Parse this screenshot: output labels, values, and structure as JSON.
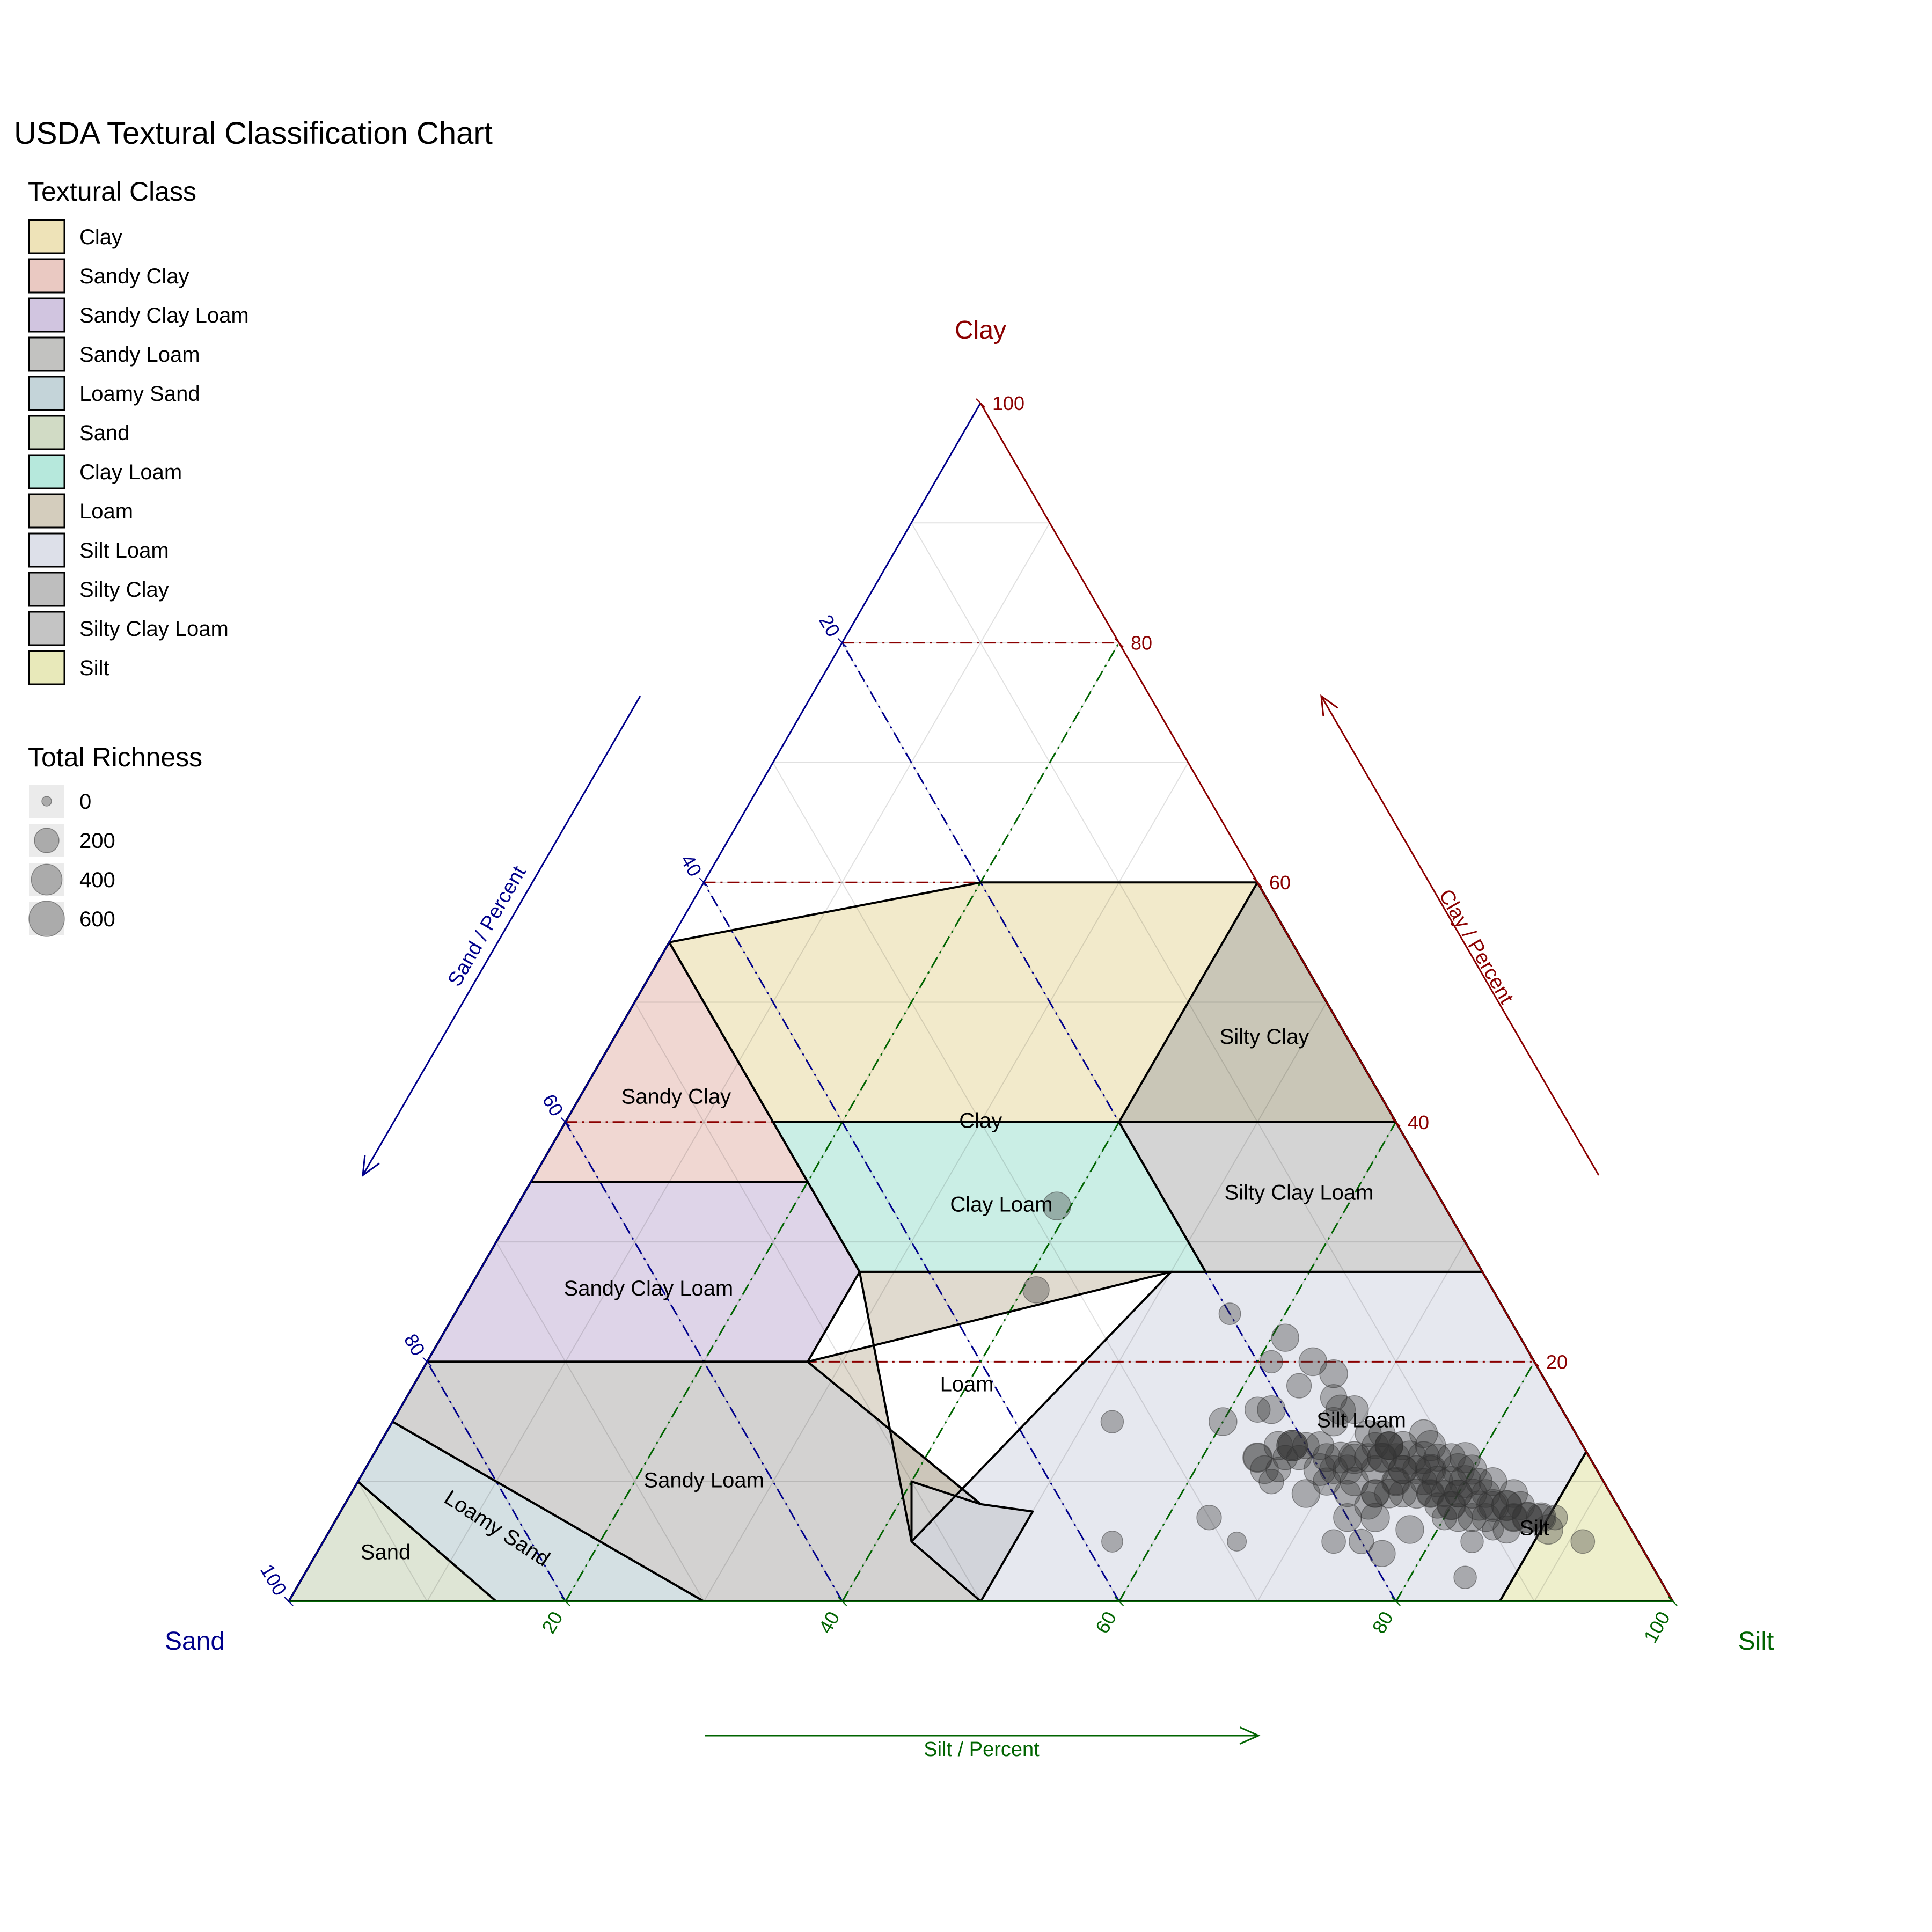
{
  "title": "USDA Textural Classification Chart",
  "legend": {
    "class_title": "Textural Class",
    "richness_title": "Total Richness"
  },
  "vertices": {
    "top": "Clay",
    "left": "Sand",
    "right": "Silt"
  },
  "axis_titles": {
    "sand": "Sand / Percent",
    "clay": "Clay / Percent",
    "silt": "Silt / Percent"
  },
  "colors": {
    "sand_axis": "#00008b",
    "clay_axis": "#8b0000",
    "silt_axis": "#006400",
    "point_fill": "#333333"
  },
  "chart_data": {
    "type": "scatter",
    "ternary": true,
    "axes": [
      "Sand",
      "Silt",
      "Clay"
    ],
    "range": [
      0,
      100
    ],
    "ticks": [
      20,
      40,
      60,
      80,
      100
    ],
    "grid": true,
    "reference_lines": {
      "clay": [
        20,
        40,
        60,
        80
      ],
      "sand": [
        20,
        40,
        60,
        80
      ],
      "silt": [
        20,
        40,
        60,
        80
      ]
    },
    "classes": [
      {
        "name": "Clay",
        "color": "#e8d9a0",
        "label_pos": [
          30,
          30,
          40
        ],
        "polygon": [
          [
            45,
            0,
            55
          ],
          [
            20,
            20,
            60
          ],
          [
            0,
            40,
            60
          ],
          [
            0,
            60,
            40
          ],
          [
            20,
            40,
            40
          ],
          [
            45,
            15,
            40
          ]
        ]
      },
      {
        "name": "Sandy Clay",
        "color": "#e3b7ad",
        "label_pos": [
          51,
          7,
          42
        ],
        "polygon": [
          [
            65,
            0,
            35
          ],
          [
            45,
            0,
            55
          ],
          [
            45,
            20,
            35
          ]
        ]
      },
      {
        "name": "Sandy Clay Loam",
        "color": "#c2b1d6",
        "label_pos": [
          61,
          13,
          26
        ],
        "polygon": [
          [
            80,
            0,
            20
          ],
          [
            65,
            0,
            35
          ],
          [
            45,
            20,
            35
          ],
          [
            45,
            27.5,
            27.5
          ],
          [
            52.5,
            27.5,
            20
          ]
        ]
      },
      {
        "name": "Sandy Loam",
        "color": "#aeadab",
        "label_pos": [
          65,
          25,
          10
        ],
        "polygon": [
          [
            85,
            0,
            15
          ],
          [
            80,
            0,
            20
          ],
          [
            52.5,
            27.5,
            20
          ],
          [
            42.5,
            42.5,
            7.5
          ],
          [
            42.5,
            50,
            7.5
          ],
          [
            50,
            50,
            0
          ],
          [
            70,
            30,
            0
          ]
        ]
      },
      {
        "name": "Loamy Sand",
        "color": "#b0c6cc",
        "label_pos": [
          82,
          12,
          6
        ],
        "polygon": [
          [
            90,
            0,
            10
          ],
          [
            85,
            0,
            15
          ],
          [
            70,
            30,
            0
          ],
          [
            85,
            15,
            0
          ]
        ]
      },
      {
        "name": "Sand",
        "color": "#c2cfb2",
        "label_pos": [
          91,
          5,
          4
        ],
        "polygon": [
          [
            100,
            0,
            0
          ],
          [
            90,
            0,
            10
          ],
          [
            85,
            15,
            0
          ]
        ]
      },
      {
        "name": "Clay Loam",
        "color": "#9ee0d0",
        "label_pos": [
          32,
          35,
          33
        ],
        "polygon": [
          [
            45,
            15,
            40
          ],
          [
            20,
            40,
            40
          ],
          [
            20,
            52.5,
            27.5
          ],
          [
            45,
            27.5,
            27.5
          ]
        ]
      },
      {
        "name": "Loam",
        "color": "#c6bca7",
        "label_pos": [
          42,
          40,
          18
        ],
        "polygon": [
          [
            45,
            27.5,
            27.5
          ],
          [
            22.5,
            50,
            27.5
          ],
          [
            52.5,
            27.5,
            20
          ],
          [
            42.5,
            42.5,
            7.5
          ],
          [
            50,
            40,
            10
          ],
          [
            52.5,
            42.5,
            5
          ]
        ]
      },
      {
        "name": "Silt Loam",
        "color": "#d2d5e1",
        "label_pos": [
          15,
          70,
          15
        ],
        "polygon": [
          [
            50,
            50,
            0
          ],
          [
            20,
            80,
            0
          ],
          [
            12.5,
            87.5,
            0
          ],
          [
            0,
            87.5,
            12.5
          ],
          [
            0,
            72.5,
            27.5
          ],
          [
            22.5,
            50,
            27.5
          ],
          [
            52.5,
            42.5,
            5
          ]
        ]
      },
      {
        "name": "Silty Clay",
        "color": "#a8a8a8",
        "label_pos": [
          6,
          47,
          47
        ],
        "polygon": [
          [
            20,
            40,
            40
          ],
          [
            0,
            60,
            40
          ],
          [
            0,
            40,
            60
          ]
        ]
      },
      {
        "name": "Silty Clay Loam",
        "color": "#b0b0b0",
        "label_pos": [
          10,
          56,
          34
        ],
        "polygon": [
          [
            20,
            40,
            40
          ],
          [
            0,
            60,
            40
          ],
          [
            0,
            72.5,
            27.5
          ],
          [
            20,
            52.5,
            27.5
          ]
        ]
      },
      {
        "name": "Silt",
        "color": "#e0e2a3",
        "label_pos": [
          7,
          87,
          6
        ],
        "polygon": [
          [
            20,
            80,
            0
          ],
          [
            0,
            100,
            0
          ],
          [
            0,
            87.5,
            12.5
          ],
          [
            12.5,
            87.5,
            0
          ]
        ]
      }
    ],
    "size_legend": [
      {
        "label": "0",
        "value": 0
      },
      {
        "label": "200",
        "value": 200
      },
      {
        "label": "400",
        "value": 400
      },
      {
        "label": "600",
        "value": 600
      }
    ],
    "series": [
      {
        "points": [
          [
            28,
            39,
            33,
            300
          ],
          [
            33,
            41,
            26,
            250
          ],
          [
            33,
            52,
            15,
            150
          ],
          [
            29,
            66,
            5,
            80
          ],
          [
            25,
            60,
            15,
            300
          ],
          [
            16,
            67,
            17,
            250
          ],
          [
            18,
            64,
            18,
            200
          ],
          [
            15,
            66,
            19,
            300
          ],
          [
            16,
            64,
            20,
            300
          ],
          [
            19,
            61,
            20,
            150
          ],
          [
            17,
            61,
            22,
            280
          ],
          [
            20,
            56,
            24,
            130
          ],
          [
            22,
            62,
            16,
            220
          ],
          [
            30,
            63,
            7,
            200
          ],
          [
            38,
            57,
            5,
            120
          ],
          [
            21,
            63,
            16,
            300
          ],
          [
            15,
            73,
            12,
            350
          ],
          [
            18,
            75,
            7,
            320
          ],
          [
            24,
            64,
            12,
            300
          ],
          [
            17,
            71,
            12,
            450
          ],
          [
            21,
            66,
            13,
            400
          ],
          [
            14,
            73,
            13,
            300
          ],
          [
            15,
            71,
            14,
            250
          ],
          [
            14,
            74,
            12,
            300
          ],
          [
            13,
            75,
            12,
            500
          ],
          [
            12,
            77,
            11,
            400
          ],
          [
            13,
            79,
            8,
            220
          ],
          [
            13,
            78,
            9,
            300
          ],
          [
            10,
            80,
            10,
            450
          ],
          [
            11,
            79,
            10,
            380
          ],
          [
            10,
            78,
            12,
            300
          ],
          [
            12,
            80,
            8,
            320
          ],
          [
            9,
            81,
            10,
            250
          ],
          [
            15,
            72,
            13,
            250
          ],
          [
            14,
            75,
            11,
            300
          ],
          [
            8,
            82,
            10,
            300
          ],
          [
            18,
            71,
            11,
            350
          ],
          [
            20,
            69,
            11,
            450
          ],
          [
            17,
            74,
            9,
            280
          ],
          [
            16,
            72,
            12,
            300
          ],
          [
            12,
            78,
            10,
            400
          ],
          [
            11,
            82,
            7,
            300
          ],
          [
            12,
            79,
            9,
            250
          ],
          [
            9,
            79,
            12,
            380
          ],
          [
            10,
            79,
            11,
            450
          ],
          [
            13,
            76,
            11,
            300
          ],
          [
            14,
            77,
            9,
            350
          ],
          [
            11,
            80,
            9,
            280
          ],
          [
            15,
            73,
            12,
            300
          ],
          [
            7,
            84,
            9,
            300
          ],
          [
            8,
            84,
            8,
            380
          ],
          [
            7,
            86,
            7,
            400
          ],
          [
            9,
            83,
            8,
            300
          ],
          [
            6,
            87,
            7,
            350
          ],
          [
            9,
            85,
            6,
            280
          ],
          [
            8,
            85,
            7,
            250
          ],
          [
            6,
            87,
            7,
            250
          ],
          [
            5,
            88,
            7,
            200
          ],
          [
            4,
            91,
            5,
            180
          ],
          [
            10,
            84,
            6,
            120
          ],
          [
            7,
            85,
            8,
            300
          ],
          [
            10,
            81,
            9,
            350
          ],
          [
            10,
            83,
            7,
            300
          ],
          [
            13,
            80,
            7,
            200
          ],
          [
            16,
            75,
            9,
            330
          ],
          [
            18,
            74,
            8,
            280
          ],
          [
            19,
            72,
            9,
            250
          ],
          [
            15,
            75,
            10,
            320
          ],
          [
            12,
            76,
            12,
            450
          ],
          [
            11,
            76,
            13,
            380
          ],
          [
            11,
            75,
            14,
            300
          ],
          [
            14,
            73,
            13,
            280
          ],
          [
            17,
            71,
            12,
            280
          ],
          [
            19,
            68,
            13,
            300
          ],
          [
            20,
            67,
            13,
            250
          ],
          [
            22,
            66,
            12,
            200
          ],
          [
            24,
            64,
            12,
            350
          ],
          [
            24,
            65,
            11,
            300
          ],
          [
            24,
            66,
            10,
            200
          ],
          [
            21,
            67,
            12,
            200
          ],
          [
            22,
            65,
            13,
            320
          ],
          [
            23,
            66,
            11,
            200
          ],
          [
            19,
            70,
            11,
            300
          ],
          [
            9,
            80,
            11,
            350
          ],
          [
            12,
            80,
            8,
            280
          ],
          [
            10,
            82,
            8,
            350
          ],
          [
            12,
            77,
            11,
            300
          ],
          [
            11,
            77,
            12,
            280
          ],
          [
            13,
            77,
            10,
            250
          ],
          [
            13,
            74,
            13,
            320
          ],
          [
            14,
            72,
            14,
            250
          ],
          [
            15,
            69,
            16,
            300
          ],
          [
            16,
            68,
            16,
            350
          ],
          [
            17,
            68,
            15,
            320
          ],
          [
            21,
            66,
            13,
            300
          ],
          [
            19,
            69,
            12,
            300
          ],
          [
            20,
            70,
            10,
            280
          ],
          [
            18,
            70,
            12,
            400
          ],
          [
            22,
            69,
            9,
            300
          ],
          [
            16,
            73,
            11,
            300
          ],
          [
            14,
            75,
            11,
            320
          ],
          [
            15,
            76,
            9,
            280
          ],
          [
            13,
            78,
            9,
            250
          ],
          [
            11,
            80,
            9,
            280
          ],
          [
            12,
            81,
            7,
            300
          ],
          [
            12,
            83,
            5,
            150
          ],
          [
            14,
            84,
            2,
            150
          ],
          [
            22,
            73,
            5,
            180
          ],
          [
            19,
            77,
            4,
            250
          ],
          [
            20,
            75,
            5,
            200
          ],
          [
            20,
            73,
            7,
            300
          ],
          [
            16,
            78,
            6,
            300
          ],
          [
            15,
            75,
            10,
            250
          ],
          [
            17,
            74,
            9,
            300
          ],
          [
            18,
            72,
            10,
            320
          ],
          [
            21,
            66,
            13,
            400
          ],
          [
            14,
            73,
            13,
            300
          ],
          [
            6,
            88,
            6,
            350
          ],
          [
            8,
            85,
            7,
            300
          ],
          [
            7,
            86,
            7,
            350
          ],
          [
            9,
            82,
            9,
            300
          ],
          [
            8,
            84,
            8,
            350
          ],
          [
            9,
            83,
            8,
            450
          ]
        ]
      }
    ]
  }
}
